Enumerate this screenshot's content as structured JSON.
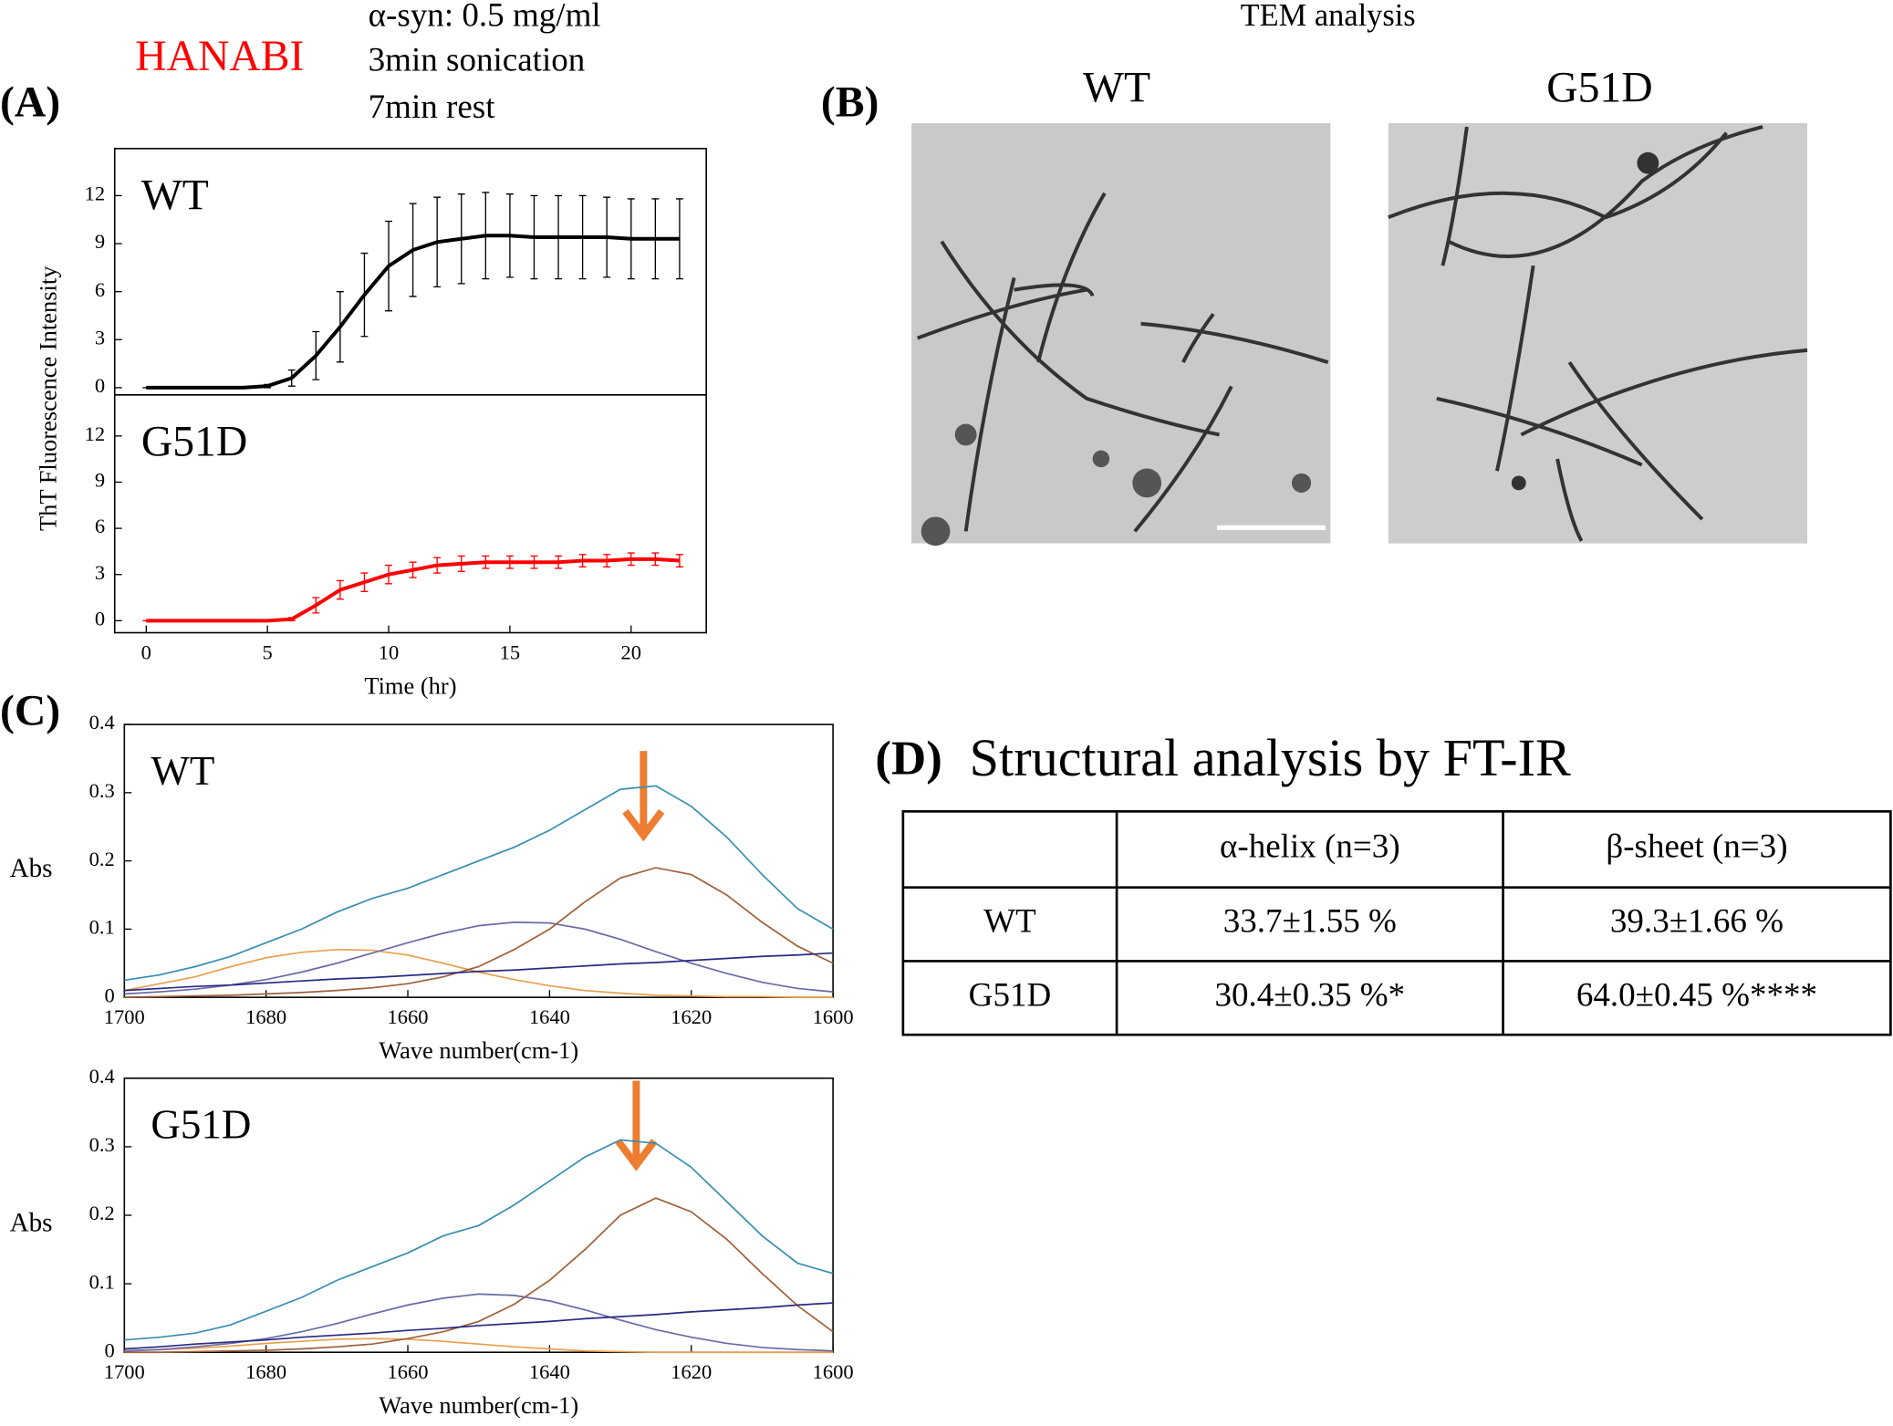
{
  "panels": {
    "a": "(A)",
    "b": "(B)",
    "c": "(C)",
    "d": "(D)"
  },
  "hanabi": {
    "label": "HANABI",
    "conditions": [
      "α-syn: 0.5 mg/ml",
      "3min sonication",
      "7min rest"
    ]
  },
  "tem": {
    "title": "TEM analysis",
    "images": [
      "WT",
      "G51D"
    ]
  },
  "chart_data": [
    {
      "type": "line",
      "panel_label": "WT",
      "ylabel": "ThT Fluorescence Intensity",
      "x": [
        0,
        1,
        2,
        3,
        4,
        5,
        6,
        7,
        8,
        9,
        10,
        11,
        12,
        13,
        14,
        15,
        16,
        17,
        18,
        19,
        20,
        21,
        22
      ],
      "series": [
        {
          "color": "#000000",
          "values": [
            0,
            0,
            0,
            0,
            0,
            0.1,
            0.6,
            2.0,
            3.8,
            5.8,
            7.6,
            8.6,
            9.1,
            9.3,
            9.5,
            9.5,
            9.4,
            9.4,
            9.4,
            9.4,
            9.3,
            9.3,
            9.3
          ],
          "errors": [
            0,
            0,
            0,
            0,
            0,
            0.1,
            0.5,
            1.5,
            2.2,
            2.6,
            2.8,
            2.9,
            2.8,
            2.8,
            2.7,
            2.6,
            2.6,
            2.6,
            2.6,
            2.5,
            2.5,
            2.5,
            2.5
          ]
        }
      ],
      "xlim": [
        -1.3,
        23.1
      ],
      "ylim": [
        -0.45,
        14.94
      ],
      "yticks": [
        0,
        3,
        6,
        9,
        12
      ]
    },
    {
      "type": "line",
      "panel_label": "G51D",
      "xlabel": "Time (hr)",
      "x": [
        0,
        1,
        2,
        3,
        4,
        5,
        6,
        7,
        8,
        9,
        10,
        11,
        12,
        13,
        14,
        15,
        16,
        17,
        18,
        19,
        20,
        21,
        22
      ],
      "series": [
        {
          "color": "#ff0000",
          "values": [
            0,
            0,
            0,
            0,
            0,
            0,
            0.1,
            1.0,
            2.0,
            2.5,
            3.0,
            3.3,
            3.6,
            3.7,
            3.8,
            3.8,
            3.8,
            3.8,
            3.9,
            3.9,
            4.0,
            4.0,
            3.9
          ],
          "errors": [
            0,
            0,
            0,
            0,
            0,
            0,
            0.1,
            0.5,
            0.6,
            0.6,
            0.6,
            0.5,
            0.5,
            0.5,
            0.4,
            0.4,
            0.4,
            0.4,
            0.4,
            0.4,
            0.4,
            0.4,
            0.4
          ]
        }
      ],
      "xlim": [
        -1.3,
        23.1
      ],
      "ylim": [
        -0.78,
        14.67
      ],
      "xticks": [
        0,
        5,
        10,
        15,
        20
      ],
      "yticks": [
        0,
        3,
        6,
        9,
        12
      ]
    },
    {
      "type": "line",
      "panel_label": "WT",
      "xlabel": "Wave number(cm-1)",
      "ylabel": "Abs",
      "x": [
        1700,
        1695,
        1690,
        1685,
        1680,
        1675,
        1670,
        1665,
        1660,
        1655,
        1650,
        1645,
        1640,
        1635,
        1630,
        1625,
        1620,
        1615,
        1610,
        1605,
        1600
      ],
      "series": [
        {
          "color": "#3a8fb0",
          "values": [
            0.025,
            0.033,
            0.045,
            0.06,
            0.08,
            0.1,
            0.125,
            0.145,
            0.16,
            0.18,
            0.2,
            0.22,
            0.245,
            0.275,
            0.305,
            0.31,
            0.28,
            0.235,
            0.18,
            0.13,
            0.1
          ]
        },
        {
          "color": "#e8a050",
          "values": [
            0.01,
            0.02,
            0.03,
            0.045,
            0.058,
            0.066,
            0.07,
            0.069,
            0.062,
            0.05,
            0.037,
            0.026,
            0.017,
            0.01,
            0.006,
            0.003,
            0.002,
            0.001,
            0.001,
            0,
            0
          ]
        },
        {
          "color": "#6a6aa8",
          "values": [
            0.005,
            0.008,
            0.012,
            0.018,
            0.026,
            0.037,
            0.05,
            0.065,
            0.08,
            0.094,
            0.105,
            0.11,
            0.109,
            0.1,
            0.085,
            0.067,
            0.05,
            0.035,
            0.022,
            0.013,
            0.008
          ]
        },
        {
          "color": "#a0603a",
          "values": [
            0,
            0.001,
            0.002,
            0.003,
            0.005,
            0.007,
            0.01,
            0.014,
            0.02,
            0.03,
            0.045,
            0.07,
            0.1,
            0.14,
            0.175,
            0.19,
            0.18,
            0.15,
            0.11,
            0.075,
            0.05
          ]
        },
        {
          "color": "#2a2a80",
          "values": [
            0.01,
            0.013,
            0.016,
            0.018,
            0.021,
            0.024,
            0.027,
            0.029,
            0.032,
            0.035,
            0.038,
            0.04,
            0.043,
            0.046,
            0.049,
            0.051,
            0.054,
            0.057,
            0.06,
            0.062,
            0.065
          ]
        }
      ],
      "xlim": [
        1700,
        1600
      ],
      "ylim": [
        0,
        0.4
      ],
      "xticks": [
        1700,
        1680,
        1660,
        1640,
        1620,
        1600
      ],
      "yticks": [
        0,
        0.1,
        0.2,
        0.3,
        0.4
      ]
    },
    {
      "type": "line",
      "panel_label": "G51D",
      "xlabel": "Wave number(cm-1)",
      "ylabel": "Abs",
      "x": [
        1700,
        1695,
        1690,
        1685,
        1680,
        1675,
        1670,
        1665,
        1660,
        1655,
        1650,
        1645,
        1640,
        1635,
        1630,
        1625,
        1620,
        1615,
        1610,
        1605,
        1600
      ],
      "series": [
        {
          "color": "#3a8fb0",
          "values": [
            0.018,
            0.022,
            0.028,
            0.04,
            0.06,
            0.08,
            0.105,
            0.125,
            0.145,
            0.17,
            0.185,
            0.215,
            0.25,
            0.285,
            0.31,
            0.305,
            0.27,
            0.22,
            0.17,
            0.13,
            0.115
          ]
        },
        {
          "color": "#e8a050",
          "values": [
            0.002,
            0.004,
            0.006,
            0.009,
            0.013,
            0.016,
            0.019,
            0.02,
            0.019,
            0.016,
            0.012,
            0.008,
            0.005,
            0.002,
            0.001,
            0,
            0,
            0,
            0,
            0,
            0
          ]
        },
        {
          "color": "#6a6aa8",
          "values": [
            0.002,
            0.004,
            0.008,
            0.013,
            0.02,
            0.03,
            0.042,
            0.056,
            0.069,
            0.079,
            0.085,
            0.083,
            0.075,
            0.062,
            0.047,
            0.033,
            0.022,
            0.013,
            0.007,
            0.004,
            0.002
          ]
        },
        {
          "color": "#a0603a",
          "values": [
            0,
            0,
            0.001,
            0.002,
            0.003,
            0.005,
            0.008,
            0.012,
            0.02,
            0.03,
            0.045,
            0.07,
            0.105,
            0.15,
            0.2,
            0.225,
            0.205,
            0.165,
            0.115,
            0.068,
            0.03
          ]
        },
        {
          "color": "#2a2a80",
          "values": [
            0.005,
            0.008,
            0.012,
            0.015,
            0.018,
            0.022,
            0.025,
            0.028,
            0.032,
            0.035,
            0.039,
            0.042,
            0.045,
            0.049,
            0.052,
            0.055,
            0.059,
            0.062,
            0.065,
            0.069,
            0.072
          ]
        }
      ],
      "xlim": [
        1700,
        1600
      ],
      "ylim": [
        0,
        0.4
      ],
      "xticks": [
        1700,
        1680,
        1660,
        1640,
        1620,
        1600
      ],
      "yticks": [
        0,
        0.1,
        0.2,
        0.3,
        0.4
      ]
    }
  ],
  "table": {
    "title": "Structural analysis by FT-IR",
    "columns": [
      "α-helix (n=3)",
      "β-sheet (n=3)"
    ],
    "rows": [
      {
        "label": "WT",
        "cells": [
          "33.7±1.55 %",
          "39.3±1.66 %"
        ]
      },
      {
        "label": "G51D",
        "cells": [
          "30.4±0.35 %*",
          "64.0±0.45 %****"
        ]
      }
    ]
  }
}
